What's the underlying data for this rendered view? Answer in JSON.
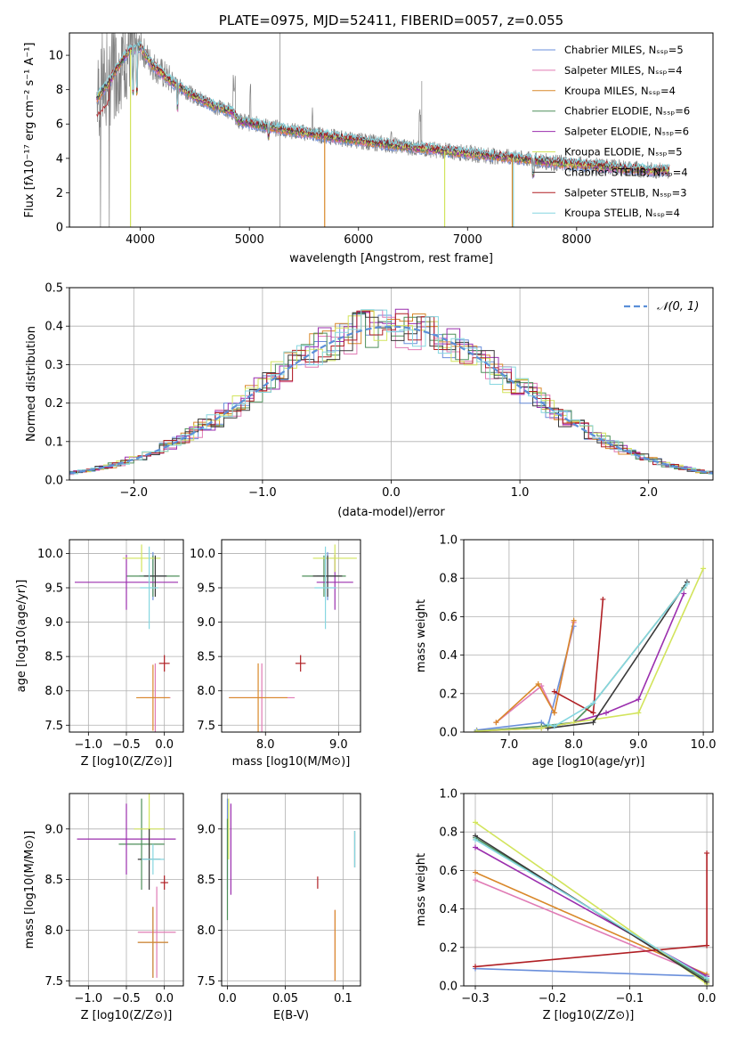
{
  "colors": {
    "series": [
      "#6a8fdb",
      "#e07bb5",
      "#d9882a",
      "#4e8f5a",
      "#9b2fae",
      "#d2e45c",
      "#3a3a3a",
      "#b01f24",
      "#86d6e0"
    ],
    "spectrum": "#808080",
    "gauss": "#5b8fd8"
  },
  "chart_data": [
    {
      "type": "line",
      "title": "PLATE=0975, MJD=52411, FIBERID=0057, z=0.055",
      "xlabel": "wavelength [Angstrom, rest frame]",
      "ylabel": "Flux [fλ10⁻¹⁷ erg cm⁻² s⁻¹ A⁻¹]",
      "xlim": [
        3350,
        9250
      ],
      "ylim": [
        0,
        11.3
      ],
      "xticks": [
        4000,
        5000,
        6000,
        7000,
        8000
      ],
      "yticks": [
        0,
        2,
        4,
        6,
        8,
        10
      ],
      "grid": false,
      "legend_position": "top-right",
      "legend": [
        "Chabrier MILES, N_SSP=5",
        "Salpeter MILES, N_SSP=4",
        "Kroupa MILES, N_SSP=4",
        "Chabrier ELODIE, N_SSP=6",
        "Salpeter ELODIE, N_SSP=6",
        "Kroupa ELODIE, N_SSP=5",
        "Chabrier STELIB, N_SSP=4",
        "Salpeter STELIB, N_SSP=3",
        "Kroupa STELIB, N_SSP=4"
      ],
      "model_continuum": {
        "x": [
          3600,
          3700,
          3800,
          3900,
          4000,
          4100,
          4300,
          4500,
          4700,
          4850,
          4900,
          5200,
          5500,
          5800,
          6100,
          6400,
          6700,
          7000,
          7300,
          7600,
          7800,
          8100,
          8400,
          8700
        ],
        "y": [
          7.5,
          8.3,
          9.4,
          10.3,
          10.5,
          9.5,
          8.4,
          7.6,
          7.0,
          6.7,
          6.2,
          5.8,
          5.5,
          5.2,
          4.95,
          4.7,
          4.5,
          4.3,
          4.1,
          3.9,
          3.75,
          3.6,
          3.45,
          3.3
        ]
      }
    },
    {
      "type": "line",
      "title": "",
      "xlabel": "(data-model)/error",
      "ylabel": "Normed distribution",
      "xlim": [
        -2.5,
        2.5
      ],
      "ylim": [
        0,
        0.5
      ],
      "xticks": [
        -2,
        -1,
        0,
        1,
        2
      ],
      "yticks": [
        0.0,
        0.1,
        0.2,
        0.3,
        0.4,
        0.5
      ],
      "grid": true,
      "legend_position": "top-right",
      "legend": [
        "𝒩(0, 1)"
      ]
    },
    {
      "type": "scatter",
      "title": "",
      "xlabel": "Z [log10(Z/Z⊙)]",
      "ylabel": "age [log10(age/yr)]",
      "xlim": [
        -1.25,
        0.25
      ],
      "ylim": [
        7.4,
        10.2
      ],
      "xticks": [
        -1.0,
        -0.5,
        0.0
      ],
      "yticks": [
        7.5,
        8.0,
        8.5,
        9.0,
        9.5,
        10.0
      ],
      "grid": true,
      "points": [
        {
          "x": -0.15,
          "y": 9.67,
          "xerr": 0.18,
          "yerr": 0.35
        },
        {
          "x": -0.12,
          "y": 7.9,
          "xerr": 0.2,
          "yerr": 0.5
        },
        {
          "x": -0.15,
          "y": 7.9,
          "xerr": 0.22,
          "yerr": 0.48
        },
        {
          "x": -0.15,
          "y": 9.67,
          "xerr": 0.35,
          "yerr": 0.3
        },
        {
          "x": -0.5,
          "y": 9.58,
          "xerr": 0.68,
          "yerr": 0.4
        },
        {
          "x": -0.3,
          "y": 9.93,
          "xerr": 0.25,
          "yerr": 0.2
        },
        {
          "x": -0.12,
          "y": 9.67,
          "xerr": 0.15,
          "yerr": 0.3
        },
        {
          "x": 0.0,
          "y": 8.4,
          "xerr": 0.07,
          "yerr": 0.12
        },
        {
          "x": -0.2,
          "y": 9.5,
          "xerr": 0.12,
          "yerr": 0.6
        }
      ]
    },
    {
      "type": "scatter",
      "title": "",
      "xlabel": "mass [log10(M/M⊙)]",
      "ylabel": "",
      "xlim": [
        7.4,
        9.3
      ],
      "ylim": [
        7.4,
        10.2
      ],
      "xticks": [
        8,
        9
      ],
      "yticks": [
        7.5,
        8.0,
        8.5,
        9.0,
        9.5,
        10.0
      ],
      "grid": true,
      "points": [
        {
          "x": 8.85,
          "y": 9.67,
          "xerr": 0.15,
          "yerr": 0.35
        },
        {
          "x": 7.95,
          "y": 7.9,
          "xerr": 0.45,
          "yerr": 0.5
        },
        {
          "x": 7.9,
          "y": 7.9,
          "xerr": 0.4,
          "yerr": 0.5
        },
        {
          "x": 8.8,
          "y": 9.67,
          "xerr": 0.3,
          "yerr": 0.3
        },
        {
          "x": 8.95,
          "y": 9.58,
          "xerr": 0.25,
          "yerr": 0.4
        },
        {
          "x": 8.95,
          "y": 9.93,
          "xerr": 0.3,
          "yerr": 0.2
        },
        {
          "x": 8.85,
          "y": 9.67,
          "xerr": 0.2,
          "yerr": 0.3
        },
        {
          "x": 8.48,
          "y": 8.4,
          "xerr": 0.07,
          "yerr": 0.12
        },
        {
          "x": 8.82,
          "y": 9.5,
          "xerr": 0.15,
          "yerr": 0.6
        }
      ]
    },
    {
      "type": "line",
      "title": "",
      "xlabel": "age [log10(age/yr)]",
      "ylabel": "mass weight",
      "xlim": [
        6.3,
        10.15
      ],
      "ylim": [
        0,
        1.0
      ],
      "xticks": [
        7,
        8,
        9,
        10
      ],
      "yticks": [
        0.0,
        0.2,
        0.4,
        0.6,
        0.8,
        1.0
      ],
      "grid": true,
      "series": [
        {
          "x": [
            6.5,
            7.5,
            7.6,
            8.0
          ],
          "y": [
            0.01,
            0.05,
            0.03,
            0.55
          ]
        },
        {
          "x": [
            6.8,
            7.5,
            7.7,
            8.0
          ],
          "y": [
            0.05,
            0.24,
            0.1,
            0.57
          ]
        },
        {
          "x": [
            6.8,
            7.45,
            7.7,
            8.0
          ],
          "y": [
            0.05,
            0.25,
            0.1,
            0.58
          ]
        },
        {
          "x": [
            6.5,
            7.5,
            8.0,
            8.3,
            9.7
          ],
          "y": [
            0.005,
            0.03,
            0.05,
            0.15,
            0.75
          ]
        },
        {
          "x": [
            6.5,
            7.5,
            8.0,
            8.5,
            9.0,
            9.7
          ],
          "y": [
            0.005,
            0.02,
            0.05,
            0.1,
            0.17,
            0.72
          ]
        },
        {
          "x": [
            6.5,
            7.5,
            8.0,
            9.0,
            10.0
          ],
          "y": [
            0.005,
            0.02,
            0.05,
            0.1,
            0.85
          ]
        },
        {
          "x": [
            7.6,
            8.3,
            9.75
          ],
          "y": [
            0.02,
            0.05,
            0.78
          ]
        },
        {
          "x": [
            7.7,
            8.3,
            8.45
          ],
          "y": [
            0.21,
            0.1,
            0.69
          ]
        },
        {
          "x": [
            7.6,
            7.7,
            8.3,
            9.75
          ],
          "y": [
            0.04,
            0.03,
            0.15,
            0.77
          ]
        }
      ]
    },
    {
      "type": "scatter",
      "title": "",
      "xlabel": "Z [log10(Z/Z⊙)]",
      "ylabel": "mass [log10(M/M⊙)]",
      "xlim": [
        -1.25,
        0.25
      ],
      "ylim": [
        7.45,
        9.35
      ],
      "xticks": [
        -1.0,
        -0.5,
        0.0
      ],
      "yticks": [
        7.5,
        8.0,
        8.5,
        9.0
      ],
      "grid": true,
      "points": [
        {
          "x": -0.15,
          "y": 7.88,
          "xerr": 0.2,
          "yerr": 0.35
        },
        {
          "x": -0.1,
          "y": 7.98,
          "xerr": 0.25,
          "yerr": 0.45
        },
        {
          "x": -0.15,
          "y": 7.88,
          "xerr": 0.2,
          "yerr": 0.35
        },
        {
          "x": -0.3,
          "y": 8.85,
          "xerr": 0.3,
          "yerr": 0.45
        },
        {
          "x": -0.5,
          "y": 8.9,
          "xerr": 0.65,
          "yerr": 0.35
        },
        {
          "x": -0.2,
          "y": 9.0,
          "xerr": 0.2,
          "yerr": 0.35
        },
        {
          "x": -0.2,
          "y": 8.7,
          "xerr": 0.15,
          "yerr": 0.3
        },
        {
          "x": 0.0,
          "y": 8.47,
          "xerr": 0.05,
          "yerr": 0.07
        },
        {
          "x": -0.15,
          "y": 8.7,
          "xerr": 0.15,
          "yerr": 0.15
        }
      ]
    },
    {
      "type": "scatter",
      "title": "",
      "xlabel": "E(B-V)",
      "ylabel": "",
      "xlim": [
        -0.005,
        0.115
      ],
      "ylim": [
        7.45,
        9.35
      ],
      "xticks": [
        0.0,
        0.05,
        0.1
      ],
      "yticks": [
        7.5,
        8.0,
        8.5,
        9.0
      ],
      "grid": true,
      "points": [
        {
          "x": 0.0,
          "y": 8.85,
          "xerr": 0.0,
          "yerr": 0.45
        },
        {
          "x": 0.093,
          "y": 7.85,
          "xerr": 0.0,
          "yerr": 0.35
        },
        {
          "x": 0.093,
          "y": 7.85,
          "xerr": 0.0,
          "yerr": 0.35
        },
        {
          "x": 0.0,
          "y": 8.6,
          "xerr": 0.0,
          "yerr": 0.5
        },
        {
          "x": 0.003,
          "y": 8.8,
          "xerr": 0.0,
          "yerr": 0.45
        },
        {
          "x": 0.001,
          "y": 9.0,
          "xerr": 0.0,
          "yerr": 0.3
        },
        {
          "x": 0.11,
          "y": 8.8,
          "xerr": 0.0,
          "yerr": 0.18
        },
        {
          "x": 0.078,
          "y": 8.47,
          "xerr": 0.0,
          "yerr": 0.06
        },
        {
          "x": 0.11,
          "y": 8.8,
          "xerr": 0.0,
          "yerr": 0.18
        }
      ]
    },
    {
      "type": "line",
      "title": "",
      "xlabel": "Z [log10(Z/Z⊙)]",
      "ylabel": "mass weight",
      "xlim": [
        -0.315,
        0.008
      ],
      "ylim": [
        0,
        1.0
      ],
      "xticks": [
        -0.3,
        -0.2,
        -0.1,
        0.0
      ],
      "yticks": [
        0.0,
        0.2,
        0.4,
        0.6,
        0.8,
        1.0
      ],
      "grid": true,
      "series": [
        {
          "x": [
            -0.3,
            0.0
          ],
          "y": [
            0.09,
            0.05
          ]
        },
        {
          "x": [
            -0.3,
            0.0
          ],
          "y": [
            0.55,
            0.05
          ]
        },
        {
          "x": [
            -0.3,
            0.0
          ],
          "y": [
            0.59,
            0.06
          ]
        },
        {
          "x": [
            -0.3,
            0.0
          ],
          "y": [
            0.77,
            0.03
          ]
        },
        {
          "x": [
            -0.3,
            0.0
          ],
          "y": [
            0.72,
            0.05
          ]
        },
        {
          "x": [
            -0.3,
            0.0
          ],
          "y": [
            0.85,
            0.01
          ]
        },
        {
          "x": [
            -0.3,
            0.0
          ],
          "y": [
            0.78,
            0.02
          ]
        },
        {
          "x": [
            -0.3,
            0.0,
            0.0
          ],
          "y": [
            0.1,
            0.21,
            0.69
          ]
        },
        {
          "x": [
            -0.3,
            0.0
          ],
          "y": [
            0.76,
            0.04
          ]
        }
      ]
    }
  ]
}
